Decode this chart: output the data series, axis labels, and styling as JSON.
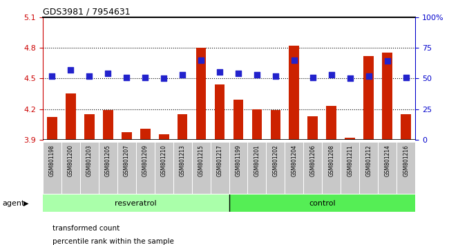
{
  "title": "GDS3981 / 7954631",
  "samples": [
    "GSM801198",
    "GSM801200",
    "GSM801203",
    "GSM801205",
    "GSM801207",
    "GSM801209",
    "GSM801210",
    "GSM801213",
    "GSM801215",
    "GSM801217",
    "GSM801199",
    "GSM801201",
    "GSM801202",
    "GSM801204",
    "GSM801206",
    "GSM801208",
    "GSM801211",
    "GSM801212",
    "GSM801214",
    "GSM801216"
  ],
  "transformed_count": [
    4.12,
    4.35,
    4.15,
    4.19,
    3.97,
    4.01,
    3.95,
    4.15,
    4.8,
    4.44,
    4.29,
    4.2,
    4.19,
    4.82,
    4.13,
    4.23,
    3.92,
    4.72,
    4.75,
    4.15
  ],
  "percentile_rank": [
    52,
    57,
    52,
    54,
    51,
    51,
    50,
    53,
    65,
    55,
    54,
    53,
    52,
    65,
    51,
    53,
    50,
    52,
    64,
    51
  ],
  "n_resveratrol": 10,
  "n_control": 10,
  "ylim_left": [
    3.9,
    5.1
  ],
  "ylim_right": [
    0,
    100
  ],
  "yticks_left": [
    3.9,
    4.2,
    4.5,
    4.8,
    5.1
  ],
  "yticks_right": [
    0,
    25,
    50,
    75,
    100
  ],
  "ytick_labels_right": [
    "0",
    "25",
    "50",
    "75",
    "100%"
  ],
  "bar_color": "#cc2200",
  "dot_color": "#2222cc",
  "bg_color_xtick": "#c8c8c8",
  "group_color_resveratrol": "#aaffaa",
  "group_color_control": "#55ee55",
  "baseline": 3.9,
  "bar_width": 0.55,
  "dot_size": 40,
  "agent_label": "agent",
  "legend_bar_label": "transformed count",
  "legend_dot_label": "percentile rank within the sample",
  "left_axis_color": "#cc0000",
  "right_axis_color": "#0000cc"
}
